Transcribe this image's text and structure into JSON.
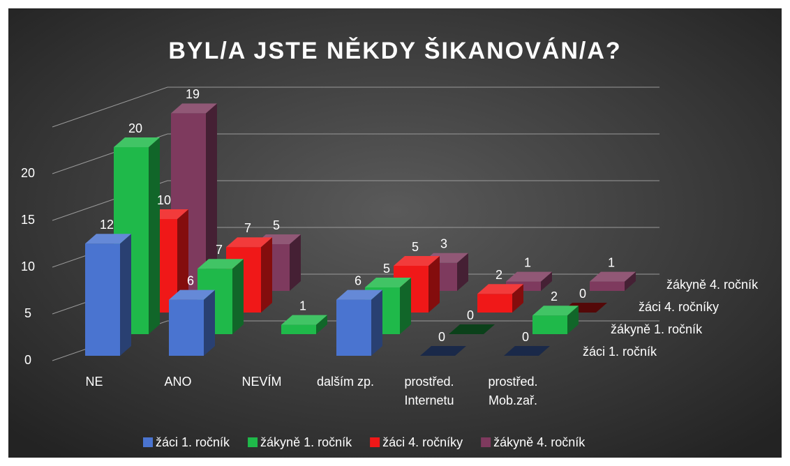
{
  "chart_data": {
    "type": "bar3d",
    "title": "BYL/A JSTE NĚKDY ŠIKANOVÁN/A?",
    "categories": [
      "NE",
      "ANO",
      "NEVÍM",
      "dalším zp.",
      "prostřed.\nInternetu",
      "prostřed.\nMob.zař."
    ],
    "series": [
      {
        "name": "žáci 1. ročník",
        "color": "#4a74d0",
        "values": [
          12,
          6,
          null,
          6,
          0,
          0
        ]
      },
      {
        "name": "žákyně 1. ročník",
        "color": "#1fb94a",
        "values": [
          20,
          7,
          1,
          5,
          0,
          2
        ]
      },
      {
        "name": "žáci 4. ročníky",
        "color": "#f01818",
        "values": [
          10,
          7,
          null,
          5,
          2,
          0
        ]
      },
      {
        "name": "žákyně 4. ročník",
        "color": "#7e3a5e",
        "values": [
          19,
          5,
          null,
          3,
          1,
          1
        ]
      }
    ],
    "ylim": [
      0,
      25
    ],
    "yticks": [
      0,
      5,
      10,
      15,
      20
    ],
    "grid": true,
    "legend": "bottom"
  }
}
